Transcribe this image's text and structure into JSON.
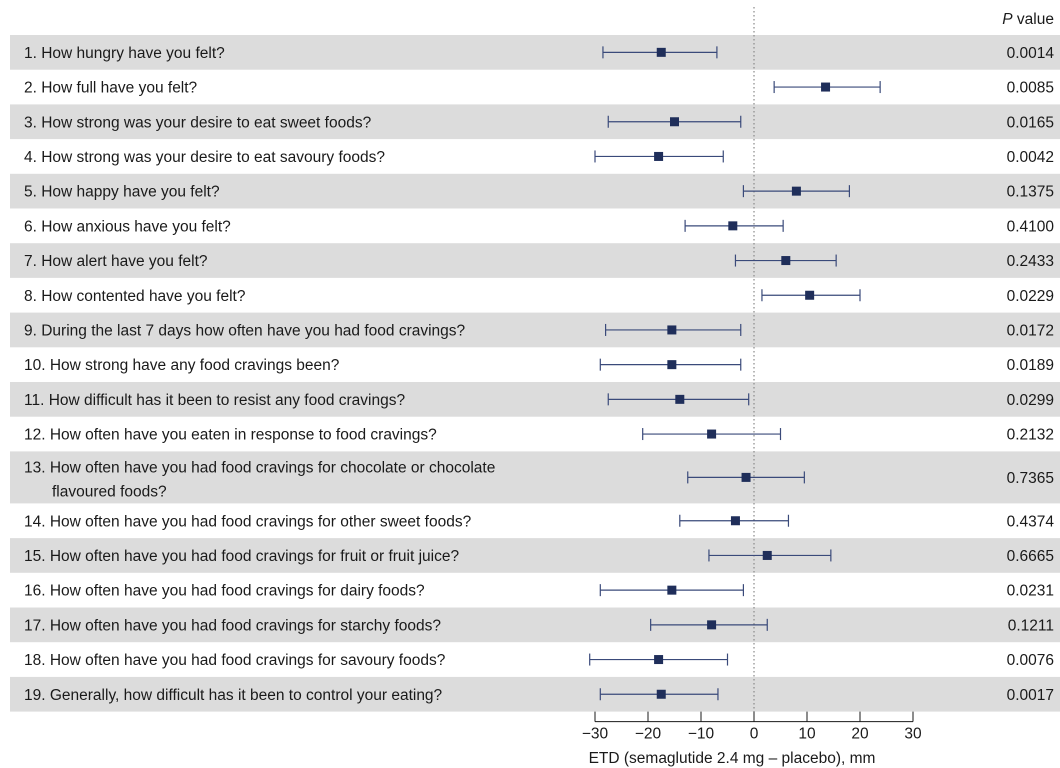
{
  "header": {
    "p_label_italic": "P",
    "p_label_rest": " value"
  },
  "colors": {
    "band": "#dcdcdc",
    "marker": "#1f2e5a",
    "line": "#3a4a7a",
    "zero_line": "#888888",
    "axis": "#1a1a1a"
  },
  "chart_data": {
    "type": "forest",
    "xlabel": "ETD (semaglutide 2.4 mg – placebo), mm",
    "xlim": [
      -30,
      30
    ],
    "xticks": [
      -30,
      -20,
      -10,
      0,
      10,
      20,
      30
    ],
    "xtick_labels": [
      "−30",
      "−20",
      "−10",
      "0",
      "10",
      "20",
      "30"
    ],
    "reference_line": 0,
    "rows": [
      {
        "label": [
          "1.  How hungry have you felt?"
        ],
        "est": -17.5,
        "lo": -28.5,
        "hi": -7.0,
        "p": "0.0014"
      },
      {
        "label": [
          "2.  How full have you felt?"
        ],
        "est": 13.5,
        "lo": 3.8,
        "hi": 23.8,
        "p": "0.0085"
      },
      {
        "label": [
          "3.  How strong was your desire to eat sweet foods?"
        ],
        "est": -15.0,
        "lo": -27.5,
        "hi": -2.5,
        "p": "0.0165"
      },
      {
        "label": [
          "4.  How strong was your desire to eat savoury foods?"
        ],
        "est": -18.0,
        "lo": -30.0,
        "hi": -5.8,
        "p": "0.0042"
      },
      {
        "label": [
          "5.  How happy have you felt?"
        ],
        "est": 8.0,
        "lo": -2.0,
        "hi": 18.0,
        "p": "0.1375"
      },
      {
        "label": [
          "6.  How anxious have you felt?"
        ],
        "est": -4.0,
        "lo": -13.0,
        "hi": 5.5,
        "p": "0.4100"
      },
      {
        "label": [
          "7.  How alert have you felt?"
        ],
        "est": 6.0,
        "lo": -3.5,
        "hi": 15.5,
        "p": "0.2433"
      },
      {
        "label": [
          "8.  How contented have you felt?"
        ],
        "est": 10.5,
        "lo": 1.5,
        "hi": 20.0,
        "p": "0.0229"
      },
      {
        "label": [
          "9.  During the last 7 days how often have you had food cravings?"
        ],
        "est": -15.5,
        "lo": -28.0,
        "hi": -2.5,
        "p": "0.0172"
      },
      {
        "label": [
          "10. How strong have any food cravings been?"
        ],
        "est": -15.5,
        "lo": -29.0,
        "hi": -2.5,
        "p": "0.0189"
      },
      {
        "label": [
          "11. How difficult has it been to resist any food cravings?"
        ],
        "est": -14.0,
        "lo": -27.5,
        "hi": -1.0,
        "p": "0.0299"
      },
      {
        "label": [
          "12. How often have you eaten in response to food cravings?"
        ],
        "est": -8.0,
        "lo": -21.0,
        "hi": 5.0,
        "p": "0.2132"
      },
      {
        "label": [
          "13. How often have you had food cravings for chocolate or chocolate",
          "flavoured foods?"
        ],
        "est": -1.5,
        "lo": -12.5,
        "hi": 9.5,
        "p": "0.7365"
      },
      {
        "label": [
          "14. How often have you had food cravings for other sweet foods?"
        ],
        "est": -3.5,
        "lo": -14.0,
        "hi": 6.5,
        "p": "0.4374"
      },
      {
        "label": [
          "15. How often have you had food cravings for fruit or fruit juice?"
        ],
        "est": 2.5,
        "lo": -8.5,
        "hi": 14.5,
        "p": "0.6665"
      },
      {
        "label": [
          "16. How often have you had food cravings for dairy foods?"
        ],
        "est": -15.5,
        "lo": -29.0,
        "hi": -2.0,
        "p": "0.0231"
      },
      {
        "label": [
          "17. How often have you had food cravings for starchy foods?"
        ],
        "est": -8.0,
        "lo": -19.5,
        "hi": 2.5,
        "p": "0.1211"
      },
      {
        "label": [
          "18. How often have you had food cravings for savoury foods?"
        ],
        "est": -18.0,
        "lo": -31.0,
        "hi": -5.0,
        "p": "0.0076"
      },
      {
        "label": [
          "19. Generally, how difficult has it been to control your eating?"
        ],
        "est": -17.5,
        "lo": -29.0,
        "hi": -6.8,
        "p": "0.0017"
      }
    ]
  }
}
